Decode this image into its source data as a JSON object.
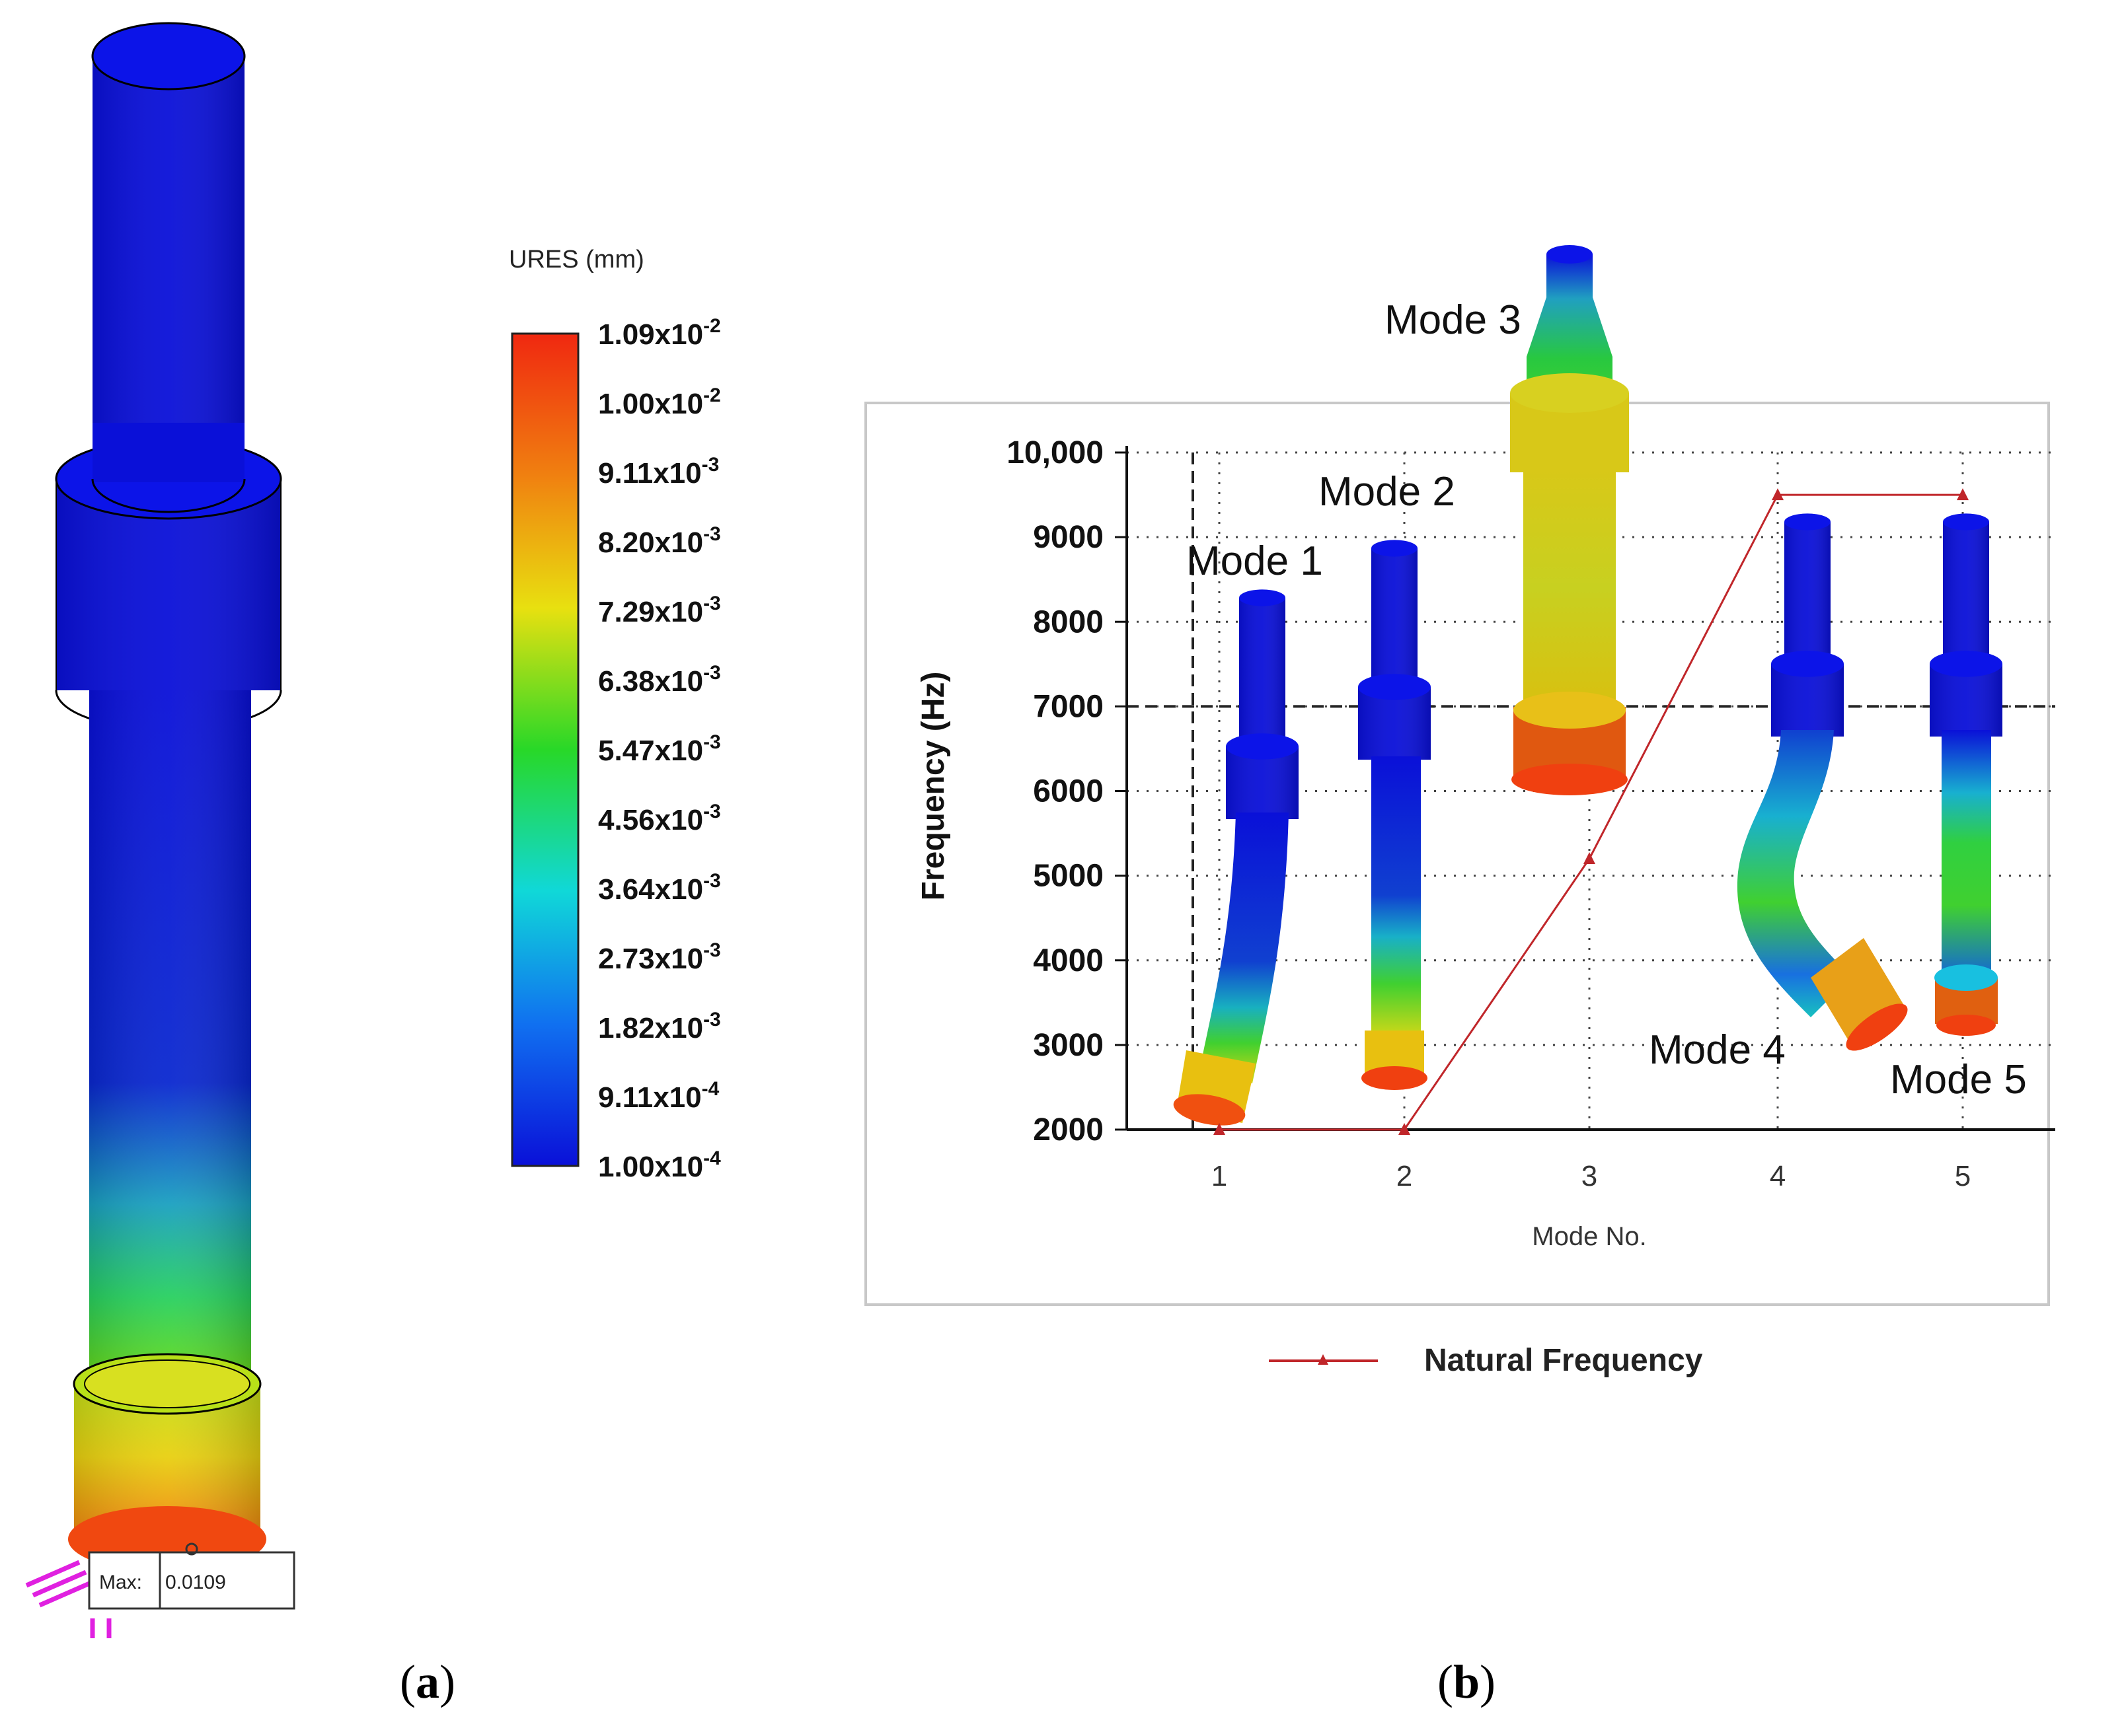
{
  "panel_a": {
    "caption": "(a)",
    "legend_title": "URES (mm)",
    "legend_labels": [
      [
        "1.09x10",
        "-2"
      ],
      [
        "1.00x10",
        "-2"
      ],
      [
        "9.11x10",
        "-3"
      ],
      [
        "8.20x10",
        "-3"
      ],
      [
        "7.29x10",
        "-3"
      ],
      [
        "6.38x10",
        "-3"
      ],
      [
        "5.47x10",
        "-3"
      ],
      [
        "4.56x10",
        "-3"
      ],
      [
        "3.64x10",
        "-3"
      ],
      [
        "2.73x10",
        "-3"
      ],
      [
        "1.82x10",
        "-3"
      ],
      [
        "9.11x10",
        "-4"
      ],
      [
        "1.00x10",
        "-4"
      ]
    ],
    "max_label": "Max:",
    "max_value": "0.0109",
    "colors": {
      "blue": "#0a10d8",
      "cyan": "#10d8d8",
      "green": "#28d828",
      "yellow": "#e8e010",
      "orange": "#f08010",
      "red": "#f02810"
    }
  },
  "panel_b": {
    "caption": "(b)",
    "mode_labels": [
      "Mode 1",
      "Mode 2",
      "Mode 3",
      "Mode 4",
      "Mode 5"
    ]
  },
  "chart_data": {
    "type": "line",
    "title": "",
    "xlabel": "Mode No.",
    "ylabel": "Frequency (Hz)",
    "x": [
      1,
      2,
      3,
      4,
      5
    ],
    "ylim": [
      2000,
      10000
    ],
    "yticks": [
      2000,
      3000,
      4000,
      5000,
      6000,
      7000,
      8000,
      9000,
      10000
    ],
    "ytick_labels": [
      "2000",
      "3000",
      "4000",
      "5000",
      "6000",
      "7000",
      "8000",
      "9000",
      "10,000"
    ],
    "xtick_labels": [
      "1",
      "2",
      "3",
      "4",
      "5"
    ],
    "grid": true,
    "legend_position": "bottom",
    "series": [
      {
        "name": "Natural Frequency",
        "color": "#c0262a",
        "values": [
          2000,
          2000,
          5200,
          9500,
          9500
        ]
      }
    ]
  }
}
